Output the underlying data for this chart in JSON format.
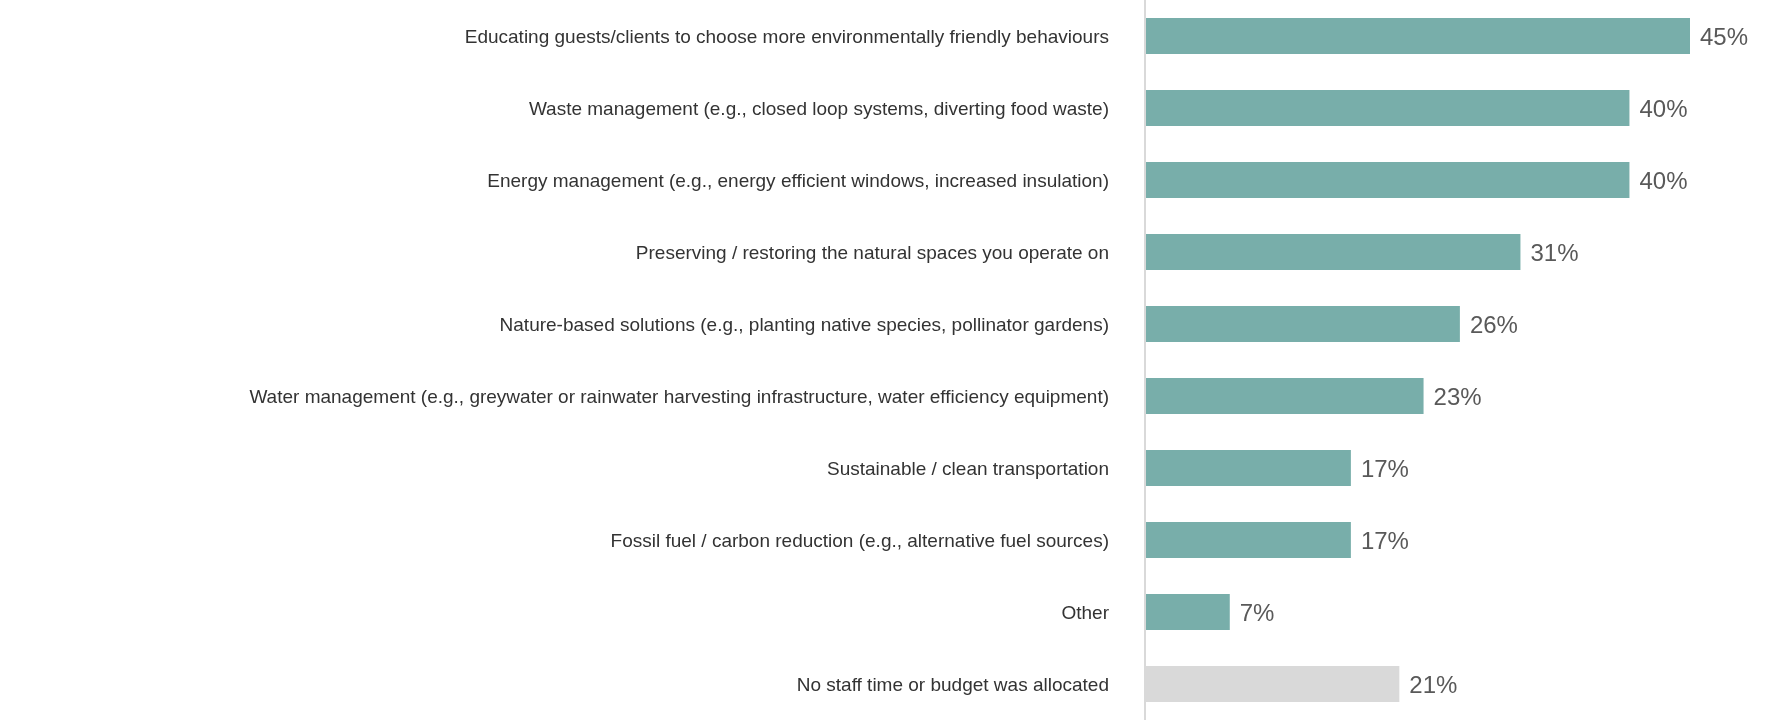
{
  "chart_data": {
    "type": "bar",
    "orientation": "horizontal",
    "categories": [
      "Educating guests/clients to choose more environmentally friendly behaviours",
      "Waste management (e.g., closed loop systems, diverting food waste)",
      "Energy management (e.g., energy efficient windows, increased insulation)",
      "Preserving / restoring the natural spaces you operate on",
      "Nature-based solutions (e.g., planting native species, pollinator gardens)",
      "Water management (e.g., greywater or rainwater harvesting infrastructure, water efficiency equipment)",
      "Sustainable / clean transportation",
      "Fossil fuel / carbon reduction (e.g., alternative fuel sources)",
      "Other",
      "No staff time or budget was allocated"
    ],
    "values": [
      45,
      40,
      40,
      31,
      26,
      23,
      17,
      17,
      7,
      21
    ],
    "colors": [
      "#78aeaa",
      "#78aeaa",
      "#78aeaa",
      "#78aeaa",
      "#78aeaa",
      "#78aeaa",
      "#78aeaa",
      "#78aeaa",
      "#78aeaa",
      "#d9d9d9"
    ],
    "value_labels": [
      "45%",
      "40%",
      "40%",
      "31%",
      "26%",
      "23%",
      "17%",
      "17%",
      "7%",
      "21%"
    ],
    "tick_labels": "y",
    "grid": false,
    "legend": false
  }
}
